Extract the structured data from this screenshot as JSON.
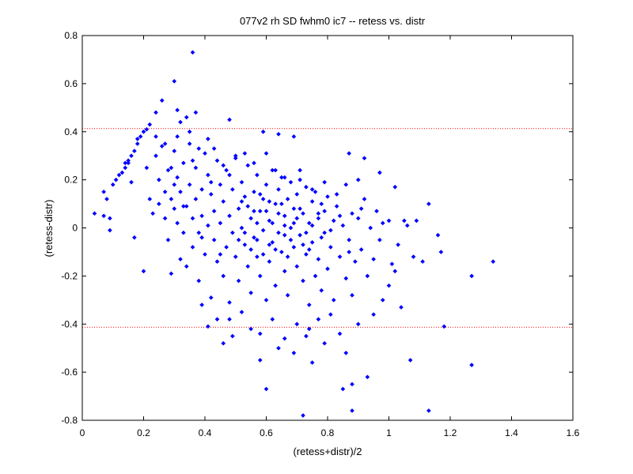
{
  "chart_data": {
    "type": "scatter",
    "title": "077v2 rh SD fwhm0 ic7 -- retess vs. distr",
    "xlabel": "(retess+distr)/2",
    "ylabel": "(retess-distr)",
    "xlim": [
      0,
      1.6
    ],
    "ylim": [
      -0.8,
      0.8
    ],
    "xticks": [
      0,
      0.2,
      0.4,
      0.6,
      0.8,
      1,
      1.2,
      1.4,
      1.6
    ],
    "yticks": [
      -0.8,
      -0.6,
      -0.4,
      -0.2,
      0,
      0.2,
      0.4,
      0.6,
      0.8
    ],
    "xtick_labels": [
      "0",
      "0.2",
      "0.4",
      "0.6",
      "0.8",
      "1",
      "1.2",
      "1.4",
      "1.6"
    ],
    "ytick_labels": [
      "-0.8",
      "-0.6",
      "-0.4",
      "-0.2",
      "0",
      "0.2",
      "0.4",
      "0.6",
      "0.8"
    ],
    "grid": false,
    "marker_color": "#0000ff",
    "reference_lines": [
      {
        "y": 0.413,
        "style": "dotted",
        "color": "#ff0000"
      },
      {
        "y": -0.413,
        "style": "dotted",
        "color": "#ff0000"
      }
    ],
    "points": [
      [
        0.04,
        0.06
      ],
      [
        0.07,
        0.15
      ],
      [
        0.07,
        0.05
      ],
      [
        0.08,
        0.12
      ],
      [
        0.09,
        0.04
      ],
      [
        0.09,
        -0.01
      ],
      [
        0.1,
        0.18
      ],
      [
        0.11,
        0.2
      ],
      [
        0.12,
        0.22
      ],
      [
        0.13,
        0.23
      ],
      [
        0.14,
        0.25
      ],
      [
        0.15,
        0.27
      ],
      [
        0.15,
        0.28
      ],
      [
        0.16,
        0.3
      ],
      [
        0.17,
        0.32
      ],
      [
        0.18,
        0.35
      ],
      [
        0.18,
        0.37
      ],
      [
        0.19,
        0.38
      ],
      [
        0.2,
        0.4
      ],
      [
        0.21,
        0.41
      ],
      [
        0.22,
        0.43
      ],
      [
        0.24,
        0.48
      ],
      [
        0.26,
        0.53
      ],
      [
        0.3,
        0.61
      ],
      [
        0.31,
        0.49
      ],
      [
        0.32,
        0.44
      ],
      [
        0.34,
        0.46
      ],
      [
        0.36,
        0.73
      ],
      [
        0.37,
        0.48
      ],
      [
        0.48,
        0.45
      ],
      [
        0.59,
        0.4
      ],
      [
        0.64,
        0.39
      ],
      [
        0.69,
        0.38
      ],
      [
        0.87,
        0.31
      ],
      [
        0.92,
        0.29
      ],
      [
        0.14,
        0.27
      ],
      [
        0.16,
        0.19
      ],
      [
        0.17,
        -0.04
      ],
      [
        0.2,
        -0.18
      ],
      [
        0.21,
        0.25
      ],
      [
        0.22,
        0.12
      ],
      [
        0.23,
        0.06
      ],
      [
        0.24,
        0.3
      ],
      [
        0.25,
        0.1
      ],
      [
        0.25,
        0.2
      ],
      [
        0.26,
        0.34
      ],
      [
        0.27,
        0.15
      ],
      [
        0.27,
        0.04
      ],
      [
        0.28,
        0.24
      ],
      [
        0.28,
        -0.05
      ],
      [
        0.29,
        0.12
      ],
      [
        0.29,
        -0.19
      ],
      [
        0.3,
        0.32
      ],
      [
        0.3,
        0.08
      ],
      [
        0.31,
        0.02
      ],
      [
        0.31,
        0.21
      ],
      [
        0.32,
        -0.13
      ],
      [
        0.32,
        0.15
      ],
      [
        0.33,
        0.27
      ],
      [
        0.33,
        -0.02
      ],
      [
        0.34,
        0.09
      ],
      [
        0.34,
        -0.16
      ],
      [
        0.35,
        0.35
      ],
      [
        0.35,
        0.18
      ],
      [
        0.36,
        0.04
      ],
      [
        0.36,
        -0.08
      ],
      [
        0.37,
        0.25
      ],
      [
        0.37,
        0.12
      ],
      [
        0.38,
        -0.02
      ],
      [
        0.38,
        -0.22
      ],
      [
        0.39,
        0.16
      ],
      [
        0.39,
        0.05
      ],
      [
        0.4,
        0.31
      ],
      [
        0.4,
        -0.11
      ],
      [
        0.41,
        0.22
      ],
      [
        0.41,
        0.01
      ],
      [
        0.42,
        -0.29
      ],
      [
        0.42,
        0.14
      ],
      [
        0.43,
        0.07
      ],
      [
        0.43,
        -0.05
      ],
      [
        0.44,
        0.28
      ],
      [
        0.44,
        -0.14
      ],
      [
        0.45,
        0.18
      ],
      [
        0.45,
        0.02
      ],
      [
        0.46,
        -0.2
      ],
      [
        0.46,
        0.11
      ],
      [
        0.47,
        0.24
      ],
      [
        0.47,
        -0.08
      ],
      [
        0.48,
        0.05
      ],
      [
        0.48,
        -0.31
      ],
      [
        0.49,
        0.16
      ],
      [
        0.49,
        -0.02
      ],
      [
        0.5,
        0.3
      ],
      [
        0.5,
        -0.12
      ],
      [
        0.51,
        0.08
      ],
      [
        0.51,
        -0.22
      ],
      [
        0.52,
        0.19
      ],
      [
        0.52,
        0.0
      ],
      [
        0.53,
        -0.07
      ],
      [
        0.53,
        0.13
      ],
      [
        0.54,
        -0.16
      ],
      [
        0.54,
        0.26
      ],
      [
        0.55,
        0.04
      ],
      [
        0.55,
        -0.27
      ],
      [
        0.56,
        0.15
      ],
      [
        0.56,
        -0.04
      ],
      [
        0.57,
        0.22
      ],
      [
        0.57,
        -0.12
      ],
      [
        0.58,
        0.07
      ],
      [
        0.58,
        -0.2
      ],
      [
        0.59,
        0.12
      ],
      [
        0.59,
        -0.01
      ],
      [
        0.6,
        -0.3
      ],
      [
        0.6,
        0.18
      ],
      [
        0.61,
        0.03
      ],
      [
        0.61,
        -0.14
      ],
      [
        0.62,
        0.24
      ],
      [
        0.62,
        -0.06
      ],
      [
        0.63,
        0.1
      ],
      [
        0.63,
        -0.24
      ],
      [
        0.64,
        0.16
      ],
      [
        0.64,
        -0.02
      ],
      [
        0.65,
        -0.1
      ],
      [
        0.65,
        0.21
      ],
      [
        0.66,
        0.05
      ],
      [
        0.66,
        -0.18
      ],
      [
        0.67,
        0.12
      ],
      [
        0.67,
        -0.28
      ],
      [
        0.68,
        0.0
      ],
      [
        0.68,
        0.19
      ],
      [
        0.69,
        -0.08
      ],
      [
        0.69,
        0.08
      ],
      [
        0.7,
        -0.16
      ],
      [
        0.7,
        0.14
      ],
      [
        0.71,
        -0.03
      ],
      [
        0.71,
        0.24
      ],
      [
        0.72,
        -0.22
      ],
      [
        0.72,
        0.06
      ],
      [
        0.73,
        -0.11
      ],
      [
        0.73,
        0.17
      ],
      [
        0.74,
        -0.32
      ],
      [
        0.74,
        0.02
      ],
      [
        0.75,
        0.11
      ],
      [
        0.75,
        -0.06
      ],
      [
        0.76,
        -0.2
      ],
      [
        0.76,
        0.15
      ],
      [
        0.77,
        0.04
      ],
      [
        0.77,
        -0.13
      ],
      [
        0.78,
        0.1
      ],
      [
        0.78,
        -0.26
      ],
      [
        0.79,
        -0.02
      ],
      [
        0.79,
        0.07
      ],
      [
        0.8,
        -0.17
      ],
      [
        0.8,
        0.13
      ],
      [
        0.81,
        -0.08
      ],
      [
        0.82,
        0.03
      ],
      [
        0.82,
        -0.3
      ],
      [
        0.83,
        0.09
      ],
      [
        0.84,
        -0.12
      ],
      [
        0.85,
        0.01
      ],
      [
        0.86,
        -0.21
      ],
      [
        0.86,
        0.18
      ],
      [
        0.87,
        -0.05
      ],
      [
        0.88,
        0.06
      ],
      [
        0.88,
        -0.28
      ],
      [
        0.89,
        -0.14
      ],
      [
        0.9,
        0.04
      ],
      [
        0.91,
        -0.09
      ],
      [
        0.92,
        0.12
      ],
      [
        0.93,
        -0.2
      ],
      [
        0.94,
        0.0
      ],
      [
        0.95,
        -0.13
      ],
      [
        0.96,
        0.07
      ],
      [
        0.97,
        -0.05
      ],
      [
        0.98,
        -0.3
      ],
      [
        1.0,
        0.03
      ],
      [
        1.01,
        -0.15
      ],
      [
        1.03,
        -0.07
      ],
      [
        1.06,
        0.01
      ],
      [
        1.08,
        -0.12
      ],
      [
        0.3,
        0.18
      ],
      [
        0.33,
        0.09
      ],
      [
        0.36,
        0.28
      ],
      [
        0.39,
        -0.04
      ],
      [
        0.42,
        0.19
      ],
      [
        0.45,
        -0.11
      ],
      [
        0.48,
        0.22
      ],
      [
        0.51,
        -0.05
      ],
      [
        0.54,
        0.09
      ],
      [
        0.57,
        0.02
      ],
      [
        0.6,
        0.07
      ],
      [
        0.63,
        -0.09
      ],
      [
        0.66,
        -0.03
      ],
      [
        0.69,
        0.02
      ],
      [
        0.72,
        -0.07
      ],
      [
        0.75,
        0.01
      ],
      [
        0.78,
        -0.04
      ],
      [
        0.81,
        -0.01
      ],
      [
        0.84,
        0.05
      ],
      [
        0.87,
        -0.1
      ],
      [
        0.52,
        0.11
      ],
      [
        0.55,
        -0.09
      ],
      [
        0.58,
        0.14
      ],
      [
        0.61,
        -0.07
      ],
      [
        0.64,
        0.06
      ],
      [
        0.67,
        -0.12
      ],
      [
        0.7,
        0.04
      ],
      [
        0.73,
        -0.02
      ],
      [
        0.56,
        0.07
      ],
      [
        0.59,
        -0.11
      ],
      [
        0.62,
        0.02
      ],
      [
        0.65,
        0.1
      ],
      [
        0.68,
        -0.05
      ],
      [
        0.71,
        0.08
      ],
      [
        0.74,
        -0.09
      ],
      [
        0.77,
        0.06
      ],
      [
        0.53,
        -0.02
      ],
      [
        0.57,
        -0.05
      ],
      [
        0.61,
        0.11
      ],
      [
        0.66,
        0.01
      ],
      [
        0.44,
        -0.38
      ],
      [
        0.46,
        -0.48
      ],
      [
        0.49,
        -0.45
      ],
      [
        0.52,
        -0.35
      ],
      [
        0.55,
        -0.42
      ],
      [
        0.58,
        -0.44
      ],
      [
        0.6,
        -0.67
      ],
      [
        0.62,
        -0.38
      ],
      [
        0.64,
        -0.5
      ],
      [
        0.66,
        -0.46
      ],
      [
        0.69,
        -0.52
      ],
      [
        0.7,
        -0.4
      ],
      [
        0.72,
        -0.78
      ],
      [
        0.73,
        -0.45
      ],
      [
        0.75,
        -0.56
      ],
      [
        0.77,
        -0.38
      ],
      [
        0.79,
        -0.48
      ],
      [
        0.81,
        -0.36
      ],
      [
        0.84,
        -0.44
      ],
      [
        0.85,
        -0.67
      ],
      [
        0.86,
        -0.52
      ],
      [
        0.88,
        -0.65
      ],
      [
        0.88,
        -0.76
      ],
      [
        0.9,
        -0.4
      ],
      [
        0.93,
        -0.62
      ],
      [
        0.41,
        -0.41
      ],
      [
        0.39,
        -0.32
      ],
      [
        0.48,
        -0.38
      ],
      [
        0.58,
        -0.55
      ],
      [
        0.74,
        -0.42
      ],
      [
        1.13,
        -0.76
      ],
      [
        1.18,
        -0.41
      ],
      [
        1.27,
        -0.57
      ],
      [
        1.07,
        -0.55
      ],
      [
        1.27,
        -0.2
      ],
      [
        1.34,
        -0.14
      ],
      [
        1.17,
        -0.1
      ],
      [
        1.16,
        -0.03
      ],
      [
        1.13,
        0.1
      ],
      [
        1.09,
        0.03
      ],
      [
        1.05,
        0.03
      ],
      [
        1.02,
        0.17
      ],
      [
        0.97,
        0.23
      ],
      [
        1.04,
        -0.33
      ],
      [
        0.95,
        -0.36
      ],
      [
        1.0,
        -0.24
      ],
      [
        1.02,
        -0.18
      ],
      [
        1.11,
        -0.14
      ],
      [
        0.98,
        0.02
      ],
      [
        0.9,
        0.2
      ],
      [
        0.24,
        0.38
      ],
      [
        0.27,
        0.35
      ],
      [
        0.29,
        0.25
      ],
      [
        0.31,
        0.38
      ],
      [
        0.35,
        0.4
      ],
      [
        0.38,
        0.33
      ],
      [
        0.41,
        0.37
      ],
      [
        0.43,
        0.33
      ],
      [
        0.46,
        0.26
      ],
      [
        0.5,
        0.29
      ],
      [
        0.53,
        0.31
      ],
      [
        0.56,
        0.27
      ],
      [
        0.6,
        0.31
      ],
      [
        0.63,
        0.24
      ],
      [
        0.66,
        0.21
      ],
      [
        0.71,
        0.2
      ],
      [
        0.75,
        0.16
      ],
      [
        0.79,
        0.19
      ],
      [
        0.83,
        0.14
      ],
      [
        0.91,
        0.08
      ]
    ]
  }
}
